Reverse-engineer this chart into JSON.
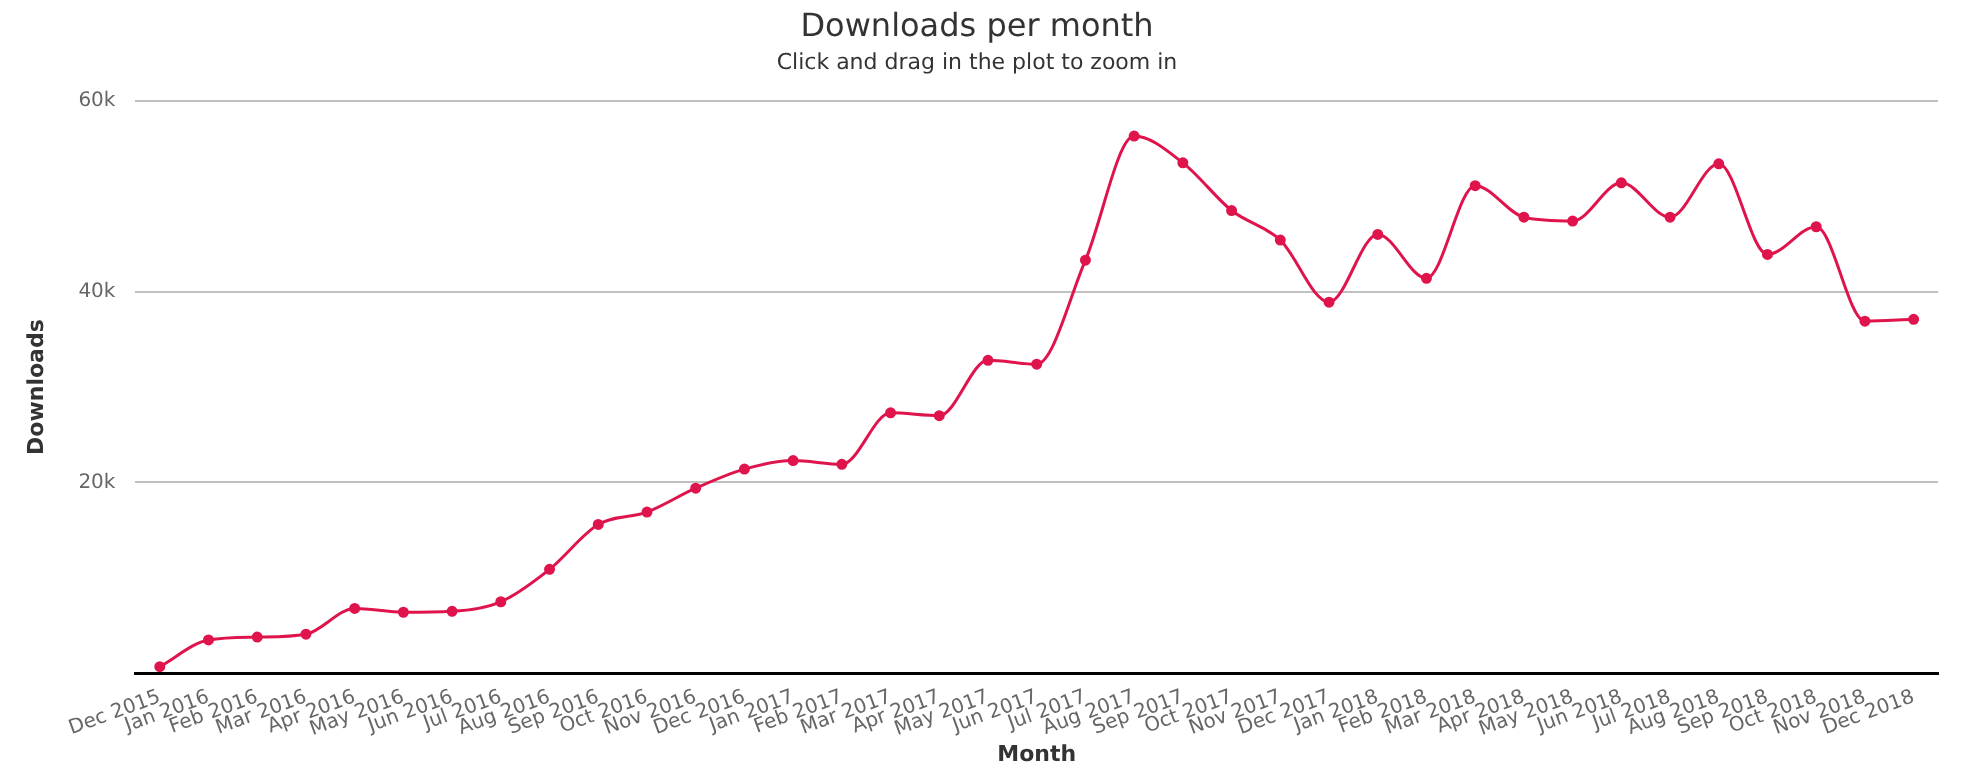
{
  "chart_data": {
    "type": "line",
    "title": "Downloads per month",
    "subtitle": "Click and drag in the plot to zoom in",
    "xlabel": "Month",
    "ylabel": "Downloads",
    "categories": [
      "Dec 2015",
      "Jan 2016",
      "Feb 2016",
      "Mar 2016",
      "Apr 2016",
      "May 2016",
      "Jun 2016",
      "Jul 2016",
      "Aug 2016",
      "Sep 2016",
      "Oct 2016",
      "Nov 2016",
      "Dec 2016",
      "Jan 2017",
      "Feb 2017",
      "Mar 2017",
      "Apr 2017",
      "May 2017",
      "Jun 2017",
      "Jul 2017",
      "Aug 2017",
      "Sep 2017",
      "Oct 2017",
      "Nov 2017",
      "Dec 2017",
      "Jan 2018",
      "Feb 2018",
      "Mar 2018",
      "Apr 2018",
      "May 2018",
      "Jun 2018",
      "Jul 2018",
      "Aug 2018",
      "Sep 2018",
      "Oct 2018",
      "Nov 2018",
      "Dec 2018"
    ],
    "series": [
      {
        "color": "#e0144c",
        "values": [
          700,
          3500,
          3800,
          4100,
          6800,
          6400,
          6500,
          7500,
          10900,
          15600,
          16900,
          19400,
          21400,
          22300,
          21900,
          27300,
          27000,
          32800,
          32400,
          43300,
          56300,
          53500,
          48500,
          45400,
          38900,
          46000,
          41400,
          51100,
          47800,
          47400,
          51400,
          47800,
          53400,
          43900,
          46800,
          36900,
          37100
        ]
      }
    ],
    "ylim": [
      0,
      60000
    ],
    "yticks": [
      {
        "value": 20000,
        "label": "20k"
      },
      {
        "value": 40000,
        "label": "40k"
      },
      {
        "value": 60000,
        "label": "60k"
      }
    ],
    "grid": "y",
    "legend": false,
    "marker": "circle",
    "line_style": "solid"
  }
}
